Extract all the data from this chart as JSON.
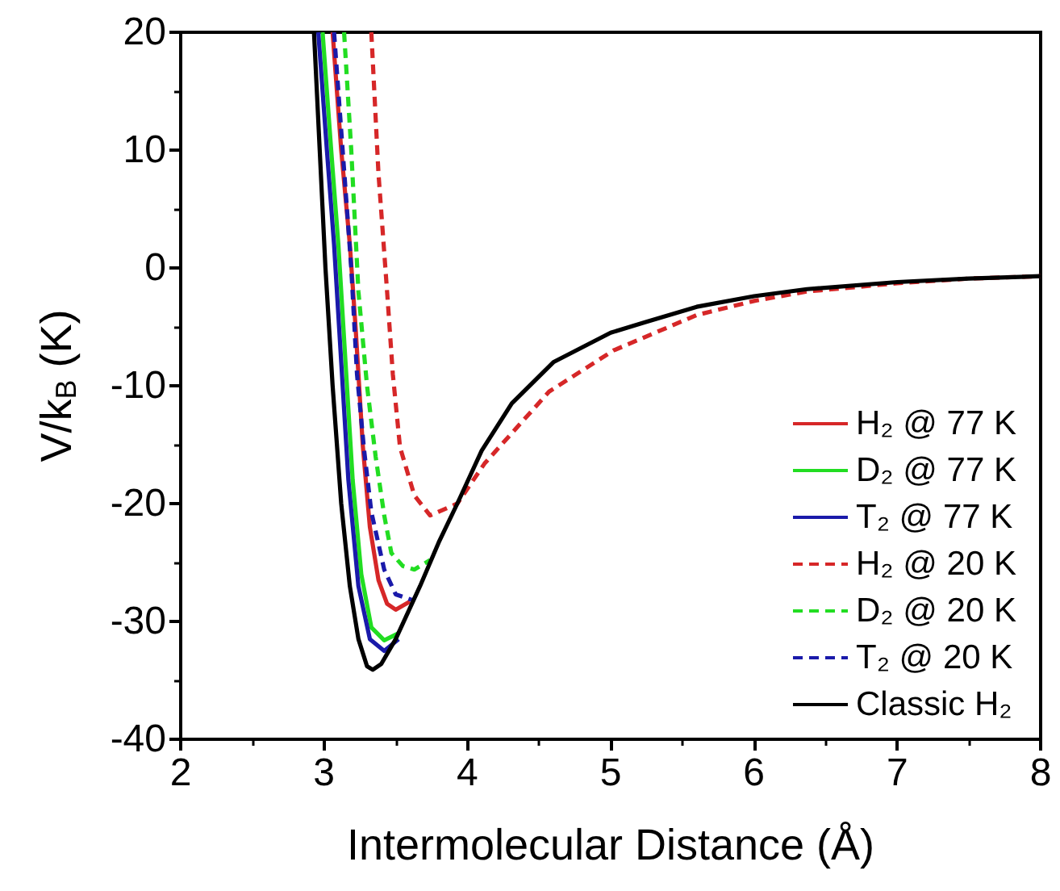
{
  "chart_data": {
    "type": "line",
    "xlabel": "Intermolecular Distance (Å)",
    "ylabel": "V/k$_{B}$ (K)",
    "xlim": [
      2,
      8
    ],
    "ylim": [
      -40,
      20
    ],
    "xticks": [
      2,
      3,
      4,
      5,
      6,
      7,
      8
    ],
    "yticks": [
      -40,
      -30,
      -20,
      -10,
      0,
      10,
      20
    ],
    "grid": false,
    "legend": "bottom right",
    "marker": "none",
    "series": [
      {
        "name": "H₂ @ 77 K",
        "color": "#d62728",
        "line_style": "solid",
        "x": [
          3.06,
          3.12,
          3.18,
          3.22,
          3.27,
          3.32,
          3.38,
          3.44,
          3.5,
          3.6
        ],
        "values": [
          20,
          10,
          2,
          -5,
          -15,
          -22,
          -26.5,
          -28.5,
          -29,
          -28.3
        ]
      },
      {
        "name": "D₂ @ 77 K",
        "color": "#22dd22",
        "line_style": "solid",
        "x": [
          2.99,
          3.05,
          3.1,
          3.15,
          3.2,
          3.26,
          3.33,
          3.42,
          3.52
        ],
        "values": [
          20,
          10,
          2,
          -8,
          -18,
          -26,
          -30.5,
          -31.6,
          -31
        ]
      },
      {
        "name": "T₂ @ 77 K",
        "color": "#1a1aaa",
        "line_style": "solid",
        "x": [
          2.96,
          3.02,
          3.07,
          3.12,
          3.17,
          3.24,
          3.32,
          3.42,
          3.52
        ],
        "values": [
          20,
          10,
          2,
          -8,
          -18,
          -27,
          -31.5,
          -32.5,
          -31.5
        ]
      },
      {
        "name": "H₂ @ 20 K",
        "color": "#d62728",
        "line_style": "dashed",
        "x": [
          3.33,
          3.38,
          3.44,
          3.48,
          3.53,
          3.63,
          3.74,
          3.93,
          4.12,
          4.57,
          5.02,
          5.6,
          6.0,
          6.37,
          7.0,
          7.5,
          8.0
        ],
        "values": [
          20,
          8,
          -2,
          -9,
          -15.2,
          -19.3,
          -21,
          -20,
          -16.6,
          -10.5,
          -7,
          -4,
          -2.8,
          -2,
          -1.3,
          -0.9,
          -0.7
        ]
      },
      {
        "name": "D₂ @ 20 K",
        "color": "#22dd22",
        "line_style": "dashed",
        "x": [
          3.14,
          3.19,
          3.24,
          3.3,
          3.36,
          3.42,
          3.47,
          3.55,
          3.63,
          3.74
        ],
        "values": [
          20,
          10,
          -2,
          -10,
          -16,
          -21,
          -24.2,
          -25.3,
          -25.6,
          -24.8
        ]
      },
      {
        "name": "T₂ @ 20 K",
        "color": "#1a1aaa",
        "line_style": "dashed",
        "x": [
          3.07,
          3.13,
          3.19,
          3.23,
          3.28,
          3.33,
          3.42,
          3.5,
          3.62
        ],
        "values": [
          20,
          10,
          0,
          -9,
          -15.5,
          -20.7,
          -25.6,
          -27.7,
          -28.2
        ]
      },
      {
        "name": "Classic H₂",
        "color": "#000000",
        "line_style": "solid",
        "x": [
          2.93,
          2.97,
          3.01,
          3.06,
          3.12,
          3.18,
          3.24,
          3.3,
          3.34,
          3.4,
          3.5,
          3.67,
          3.8,
          3.93,
          4.1,
          4.31,
          4.6,
          5.0,
          5.24,
          5.6,
          6.0,
          6.37,
          7.0,
          7.5,
          8.0
        ],
        "values": [
          20,
          10,
          0,
          -10,
          -20,
          -27,
          -31.5,
          -33.8,
          -34.1,
          -33.6,
          -31.5,
          -27,
          -23.3,
          -20,
          -15.5,
          -11.5,
          -8,
          -5.5,
          -4.6,
          -3.3,
          -2.4,
          -1.8,
          -1.2,
          -0.9,
          -0.7
        ]
      }
    ]
  }
}
